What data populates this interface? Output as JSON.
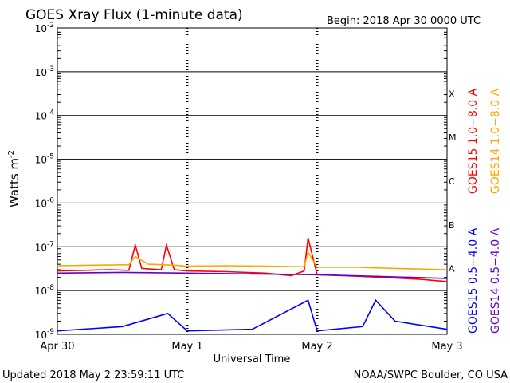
{
  "chart_data": {
    "type": "line",
    "title": "GOES Xray Flux (1-minute data)",
    "begin_label": "Begin:  2018 Apr 30 0000 UTC",
    "xlabel": "Universal Time",
    "ylabel": "Watts m",
    "ylabel_sup": "-2",
    "y_scale": "log",
    "ylim": [
      1e-09,
      0.01
    ],
    "y_ticks": [
      {
        "base": "10",
        "exp": "-9"
      },
      {
        "base": "10",
        "exp": "-8"
      },
      {
        "base": "10",
        "exp": "-7"
      },
      {
        "base": "10",
        "exp": "-6"
      },
      {
        "base": "10",
        "exp": "-5"
      },
      {
        "base": "10",
        "exp": "-4"
      },
      {
        "base": "10",
        "exp": "-3"
      },
      {
        "base": "10",
        "exp": "-2"
      }
    ],
    "x_range_days": [
      0,
      3
    ],
    "x_ticks": [
      "Apr 30",
      "May 1",
      "May 2",
      "May 3"
    ],
    "flare_classes": [
      "A",
      "B",
      "C",
      "M",
      "X"
    ],
    "legend_placement": "right-vertical",
    "series": [
      {
        "name": "GOES15 1.0−8.0 A",
        "color": "#ff0000",
        "x": [
          0,
          0.2,
          0.4,
          0.55,
          0.6,
          0.65,
          0.8,
          0.84,
          0.9,
          1.0,
          1.3,
          1.6,
          1.8,
          1.9,
          1.93,
          2.0,
          2.2,
          2.5,
          2.8,
          3.0
        ],
        "y": [
          2.8e-08,
          2.9e-08,
          3e-08,
          2.9e-08,
          1.1e-07,
          3.2e-08,
          3e-08,
          1.1e-07,
          3e-08,
          2.8e-08,
          2.7e-08,
          2.5e-08,
          2.2e-08,
          2.8e-08,
          1.6e-07,
          2.3e-08,
          2.2e-08,
          2e-08,
          1.8e-08,
          1.6e-08
        ]
      },
      {
        "name": "GOES14 1.0−8.0 A",
        "color": "#ffa500",
        "x": [
          0,
          0.3,
          0.55,
          0.6,
          0.7,
          0.9,
          1.0,
          1.3,
          1.6,
          1.9,
          1.93,
          2.0,
          2.3,
          2.6,
          3.0
        ],
        "y": [
          3.7e-08,
          3.8e-08,
          3.9e-08,
          6e-08,
          4e-08,
          3.8e-08,
          3.6e-08,
          3.7e-08,
          3.6e-08,
          3.5e-08,
          7.5e-08,
          3.4e-08,
          3.4e-08,
          3.2e-08,
          3e-08
        ]
      },
      {
        "name": "GOES15 0.5−4.0 A",
        "color": "#0000ff",
        "x": [
          0,
          0.5,
          0.85,
          1.0,
          1.5,
          1.93,
          2.0,
          2.35,
          2.45,
          2.6,
          3.0
        ],
        "y": [
          1.2e-09,
          1.5e-09,
          3e-09,
          1.2e-09,
          1.3e-09,
          6e-09,
          1.2e-09,
          1.5e-09,
          6e-09,
          2e-09,
          1.3e-09
        ]
      },
      {
        "name": "GOES14 0.5−4.0 A",
        "color": "#6600cc",
        "x": [
          0,
          0.5,
          1.0,
          1.5,
          2.0,
          2.5,
          3.0
        ],
        "y": [
          2.5e-08,
          2.6e-08,
          2.5e-08,
          2.4e-08,
          2.3e-08,
          2.1e-08,
          1.9e-08
        ]
      }
    ],
    "grid": true
  },
  "footer": {
    "updated": "Updated 2018 May  2 23:59:11 UTC",
    "credit": "NOAA/SWPC Boulder, CO USA"
  }
}
